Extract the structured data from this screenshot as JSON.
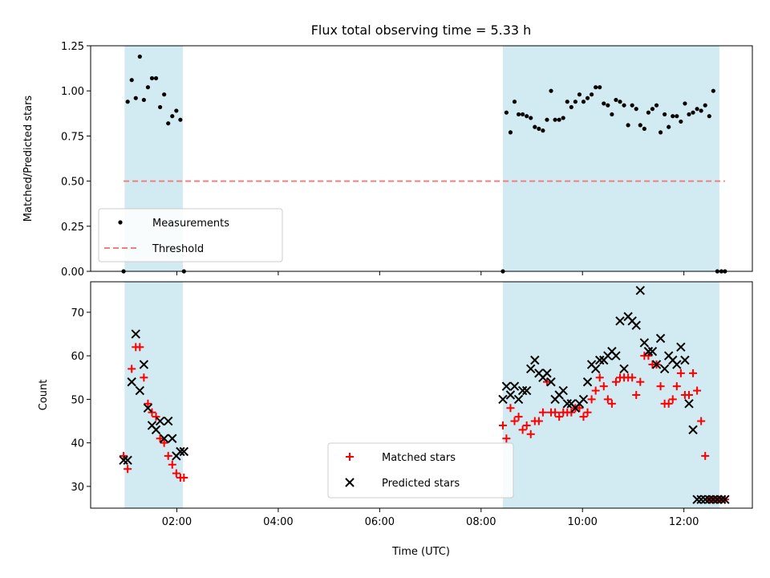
{
  "chart_data": {
    "title": "Flux total observing time = 5.33 h",
    "xlabel": "Time (UTC)",
    "x_unit": "decimal hours UTC",
    "xlim": [
      0.3,
      13.35
    ],
    "x_ticks": [
      {
        "value": 2,
        "label": "02:00"
      },
      {
        "value": 4,
        "label": "04:00"
      },
      {
        "value": 6,
        "label": "06:00"
      },
      {
        "value": 8,
        "label": "08:00"
      },
      {
        "value": 10,
        "label": "10:00"
      },
      {
        "value": 12,
        "label": "12:00"
      }
    ],
    "shaded_intervals": [
      [
        0.97,
        2.12
      ],
      [
        8.43,
        12.7
      ]
    ],
    "shade_color": "#add8e6",
    "panels": [
      {
        "name": "ratio",
        "type": "scatter",
        "ylabel": "Matched/Predicted stars",
        "ylim": [
          0,
          1.25
        ],
        "y_ticks": [
          {
            "value": 0,
            "label": "0.00"
          },
          {
            "value": 0.25,
            "label": "0.25"
          },
          {
            "value": 0.5,
            "label": "0.50"
          },
          {
            "value": 0.75,
            "label": "0.75"
          },
          {
            "value": 1.0,
            "label": "1.00"
          },
          {
            "value": 1.25,
            "label": "1.25"
          }
        ],
        "legend_position": "lower-left",
        "series": [
          {
            "name": "Measurements",
            "color": "#000000",
            "marker": "dot",
            "x": [
              0.95,
              1.03,
              1.11,
              1.19,
              1.27,
              1.35,
              1.43,
              1.51,
              1.59,
              1.67,
              1.75,
              1.83,
              1.91,
              1.99,
              2.07,
              2.14,
              8.43,
              8.5,
              8.58,
              8.66,
              8.74,
              8.82,
              8.9,
              8.98,
              9.06,
              9.14,
              9.22,
              9.3,
              9.38,
              9.46,
              9.54,
              9.62,
              9.7,
              9.78,
              9.86,
              9.94,
              10.02,
              10.1,
              10.18,
              10.26,
              10.34,
              10.42,
              10.5,
              10.58,
              10.66,
              10.74,
              10.82,
              10.9,
              10.98,
              11.06,
              11.14,
              11.22,
              11.3,
              11.38,
              11.46,
              11.54,
              11.62,
              11.7,
              11.78,
              11.86,
              11.94,
              12.02,
              12.1,
              12.18,
              12.26,
              12.34,
              12.42,
              12.5,
              12.58,
              12.66,
              12.74,
              12.81
            ],
            "y": [
              0.0,
              0.94,
              1.06,
              0.96,
              1.19,
              0.95,
              1.02,
              1.07,
              1.07,
              0.91,
              0.98,
              0.82,
              0.86,
              0.89,
              0.84,
              0.0,
              0.0,
              0.88,
              0.77,
              0.94,
              0.87,
              0.87,
              0.86,
              0.85,
              0.8,
              0.79,
              0.78,
              0.84,
              1.0,
              0.84,
              0.84,
              0.85,
              0.94,
              0.91,
              0.94,
              0.98,
              0.94,
              0.96,
              0.98,
              1.02,
              1.02,
              0.93,
              0.92,
              0.87,
              0.95,
              0.94,
              0.92,
              0.81,
              0.92,
              0.9,
              0.81,
              0.79,
              0.88,
              0.9,
              0.92,
              0.77,
              0.87,
              0.8,
              0.86,
              0.86,
              0.83,
              0.93,
              0.87,
              0.88,
              0.9,
              0.89,
              0.92,
              0.86,
              1.0,
              0.0,
              0.0,
              0.0
            ]
          }
        ],
        "reference_lines": [
          {
            "name": "Threshold",
            "y": 0.5,
            "x_range": [
              0.95,
              12.81
            ],
            "color": "#f08080",
            "style": "dashed"
          }
        ]
      },
      {
        "name": "counts",
        "type": "scatter",
        "ylabel": "Count",
        "ylim": [
          25,
          77
        ],
        "y_ticks": [
          {
            "value": 30,
            "label": "30"
          },
          {
            "value": 40,
            "label": "40"
          },
          {
            "value": 50,
            "label": "50"
          },
          {
            "value": 60,
            "label": "60"
          },
          {
            "value": 70,
            "label": "70"
          }
        ],
        "legend_position": "lower-center",
        "series": [
          {
            "name": "Matched stars",
            "color": "#ff0000",
            "marker": "plus",
            "x": [
              0.95,
              1.03,
              1.11,
              1.19,
              1.27,
              1.35,
              1.43,
              1.51,
              1.59,
              1.67,
              1.75,
              1.83,
              1.91,
              1.99,
              2.07,
              2.14,
              8.43,
              8.5,
              8.58,
              8.66,
              8.74,
              8.82,
              8.9,
              8.98,
              9.06,
              9.14,
              9.22,
              9.3,
              9.38,
              9.46,
              9.54,
              9.62,
              9.7,
              9.78,
              9.86,
              9.94,
              10.02,
              10.1,
              10.18,
              10.26,
              10.34,
              10.42,
              10.5,
              10.58,
              10.66,
              10.74,
              10.82,
              10.9,
              10.98,
              11.06,
              11.14,
              11.22,
              11.3,
              11.38,
              11.46,
              11.54,
              11.62,
              11.7,
              11.78,
              11.86,
              11.94,
              12.02,
              12.1,
              12.18,
              12.26,
              12.34,
              12.42,
              12.5,
              12.58,
              12.66,
              12.74,
              12.81
            ],
            "y": [
              37,
              34,
              57,
              62,
              62,
              55,
              49,
              47,
              46,
              41,
              40,
              37,
              35,
              33,
              32,
              32,
              44,
              41,
              48,
              45,
              46,
              43,
              44,
              42,
              45,
              45,
              47,
              54,
              47,
              47,
              46,
              47,
              47,
              47,
              48,
              48,
              46,
              47,
              50,
              52,
              55,
              53,
              50,
              49,
              54,
              55,
              55,
              55,
              55,
              51,
              54,
              60,
              60,
              58,
              58,
              53,
              49,
              49,
              50,
              53,
              56,
              51,
              51,
              56,
              52,
              45,
              37,
              27,
              27,
              27,
              27,
              27
            ]
          },
          {
            "name": "Predicted stars",
            "color": "#000000",
            "marker": "x",
            "x": [
              0.95,
              1.03,
              1.11,
              1.19,
              1.27,
              1.35,
              1.43,
              1.51,
              1.59,
              1.67,
              1.75,
              1.83,
              1.91,
              1.99,
              2.07,
              2.14,
              8.43,
              8.5,
              8.58,
              8.66,
              8.74,
              8.82,
              8.9,
              8.98,
              9.06,
              9.14,
              9.22,
              9.3,
              9.38,
              9.46,
              9.54,
              9.62,
              9.7,
              9.78,
              9.86,
              9.94,
              10.02,
              10.1,
              10.18,
              10.26,
              10.34,
              10.42,
              10.5,
              10.58,
              10.66,
              10.74,
              10.82,
              10.9,
              10.98,
              11.06,
              11.14,
              11.22,
              11.3,
              11.38,
              11.46,
              11.54,
              11.62,
              11.7,
              11.78,
              11.86,
              11.94,
              12.02,
              12.1,
              12.18,
              12.26,
              12.34,
              12.42,
              12.5,
              12.58,
              12.66,
              12.74,
              12.81
            ],
            "y": [
              36,
              36,
              54,
              65,
              52,
              58,
              48,
              44,
              43,
              45,
              41,
              45,
              41,
              37,
              38,
              38,
              50,
              53,
              51,
              53,
              50,
              52,
              52,
              57,
              59,
              56,
              55,
              56,
              54,
              50,
              51,
              52,
              49,
              49,
              48,
              49,
              50,
              54,
              58,
              57,
              59,
              59,
              60,
              61,
              60,
              68,
              57,
              69,
              68,
              67,
              75,
              63,
              61,
              61,
              58,
              64,
              57,
              60,
              59,
              58,
              62,
              59,
              49,
              43,
              27,
              27,
              27,
              27,
              27,
              27,
              27,
              27
            ]
          }
        ]
      }
    ]
  }
}
